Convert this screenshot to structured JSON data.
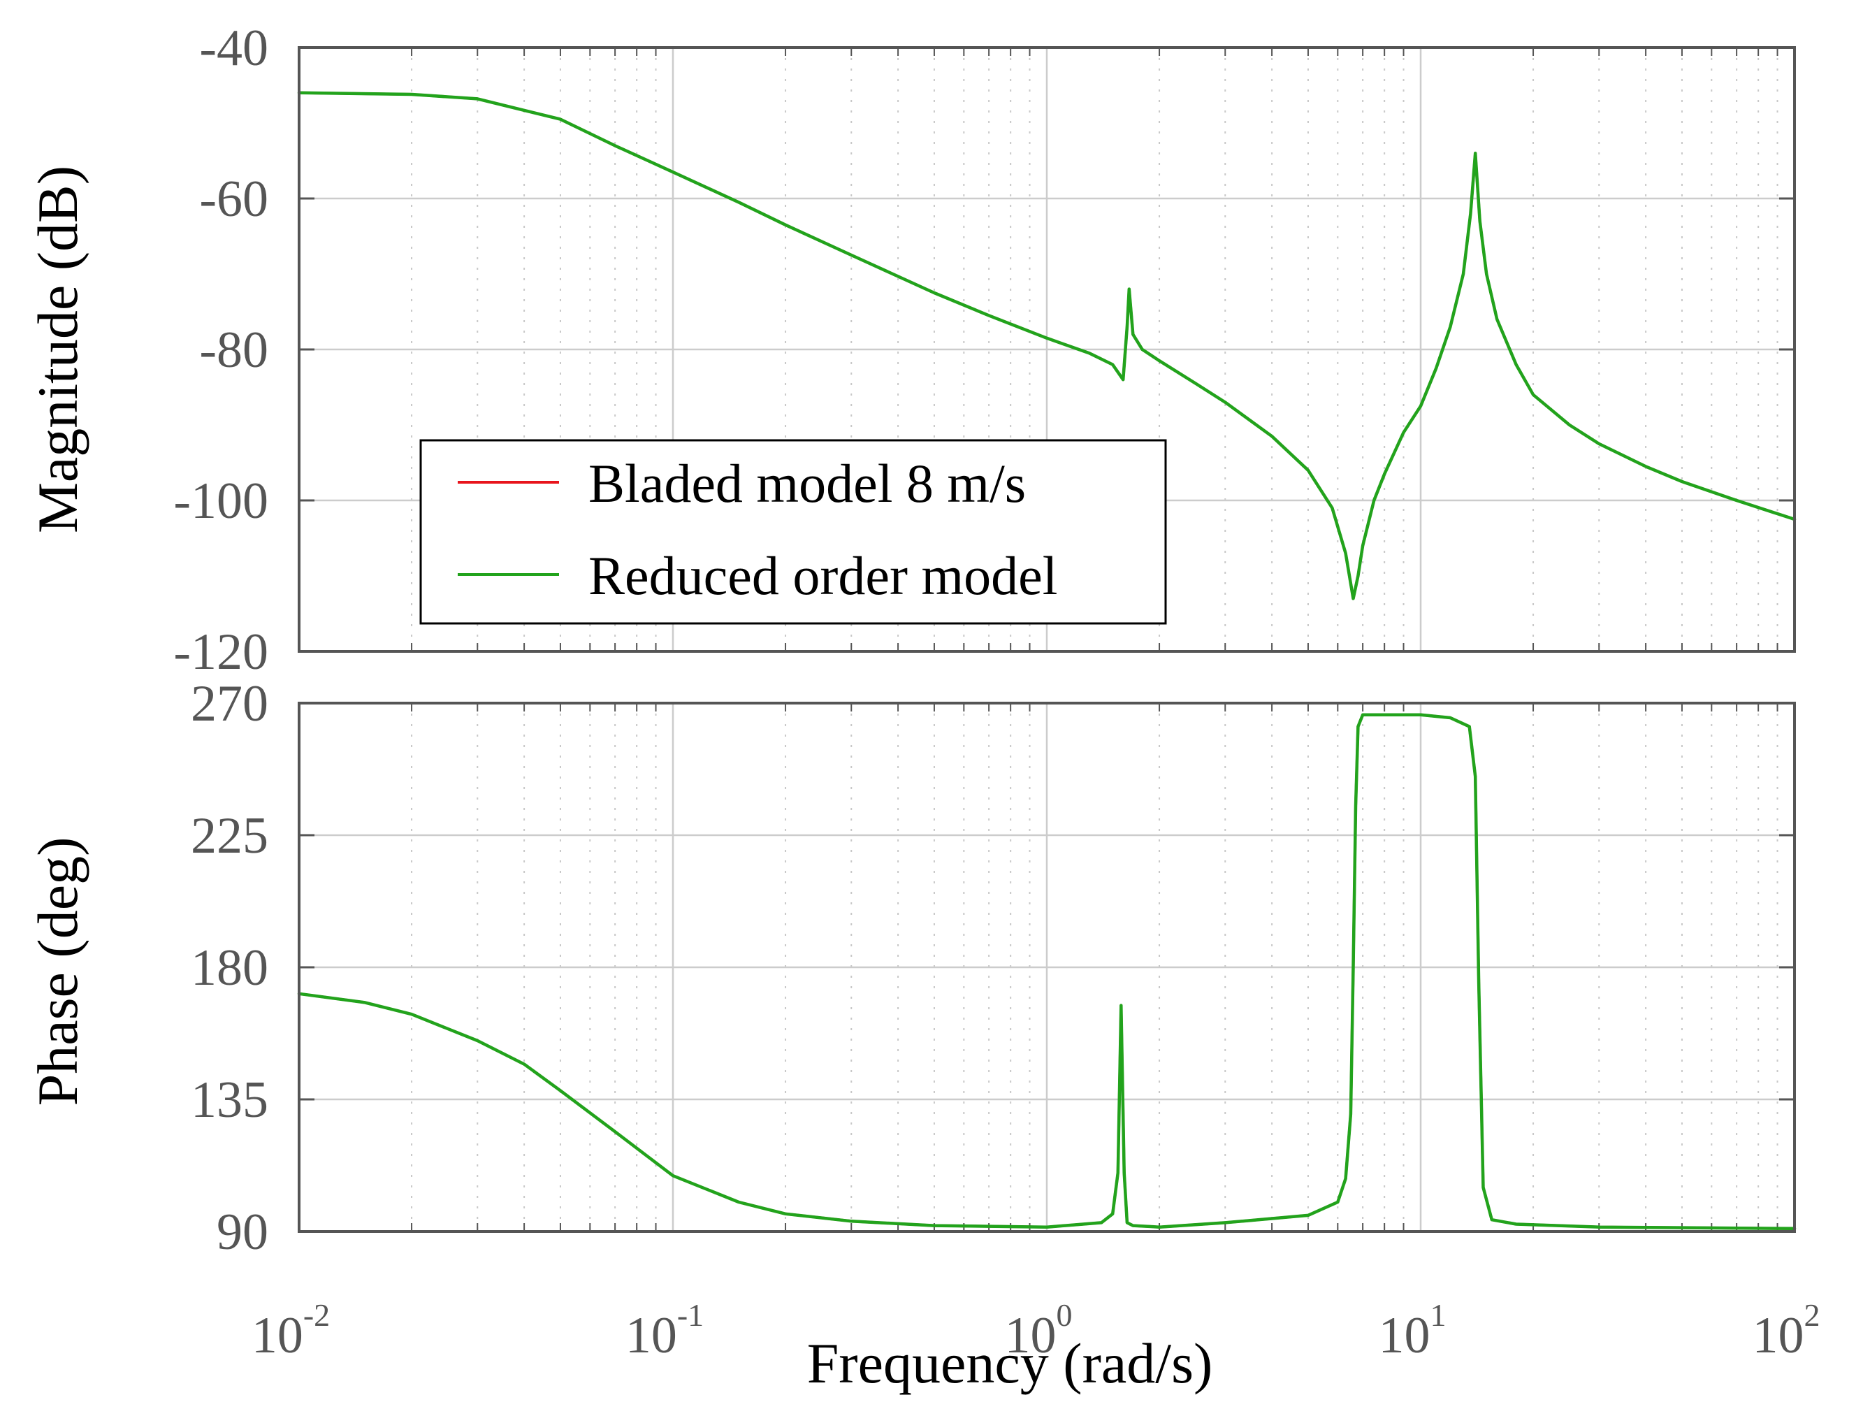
{
  "chart_data": [
    {
      "type": "line",
      "panel": "magnitude",
      "ylabel": "Magnitude (dB)",
      "ylim": [
        -120,
        -40
      ],
      "yticks": [
        -40,
        -60,
        -80,
        -100,
        -120
      ],
      "xscale": "log",
      "xlim": [
        0.01,
        100
      ],
      "grid": true,
      "legend": {
        "position": "lower-left",
        "entries": [
          "Bladed model  8 m/s",
          "Reduced order model"
        ]
      },
      "series": [
        {
          "name": "Bladed model  8 m/s",
          "color": "#e8141c",
          "x": [
            0.01,
            0.02,
            0.03,
            0.05,
            0.07,
            0.1,
            0.15,
            0.2,
            0.3,
            0.5,
            0.7,
            1.0,
            1.3,
            1.5,
            1.6,
            1.64,
            1.66,
            1.7,
            1.8,
            2.0,
            2.5,
            3.0,
            4.0,
            5.0,
            5.8,
            6.3,
            6.6,
            6.8,
            7.0,
            7.5,
            8.0,
            9.0,
            10.0,
            11.0,
            12.0,
            13.0,
            13.6,
            14.0,
            14.4,
            15.0,
            16.0,
            18.0,
            20.0,
            25.0,
            30.0,
            40.0,
            50.0,
            70.0,
            100.0
          ],
          "y": [
            -46,
            -46.2,
            -46.8,
            -49.5,
            -53,
            -56.5,
            -60.5,
            -63.5,
            -67.5,
            -72.5,
            -75.5,
            -78.5,
            -80.5,
            -82,
            -84,
            -77,
            -72,
            -78,
            -80,
            -81.5,
            -84.5,
            -87,
            -91.5,
            -96,
            -101,
            -107,
            -113,
            -110,
            -106,
            -100,
            -96.5,
            -91,
            -87.5,
            -82.5,
            -77,
            -70,
            -62,
            -54,
            -63,
            -70,
            -76,
            -82,
            -86,
            -90,
            -92.5,
            -95.5,
            -97.5,
            -100,
            -102.5
          ]
        },
        {
          "name": "Reduced order model",
          "color": "#22a31c",
          "x": [
            0.01,
            0.02,
            0.03,
            0.05,
            0.07,
            0.1,
            0.15,
            0.2,
            0.3,
            0.5,
            0.7,
            1.0,
            1.3,
            1.5,
            1.6,
            1.64,
            1.66,
            1.7,
            1.8,
            2.0,
            2.5,
            3.0,
            4.0,
            5.0,
            5.8,
            6.3,
            6.6,
            6.8,
            7.0,
            7.5,
            8.0,
            9.0,
            10.0,
            11.0,
            12.0,
            13.0,
            13.6,
            14.0,
            14.4,
            15.0,
            16.0,
            18.0,
            20.0,
            25.0,
            30.0,
            40.0,
            50.0,
            70.0,
            100.0
          ],
          "y": [
            -46,
            -46.2,
            -46.8,
            -49.5,
            -53,
            -56.5,
            -60.5,
            -63.5,
            -67.5,
            -72.5,
            -75.5,
            -78.5,
            -80.5,
            -82,
            -84,
            -77,
            -72,
            -78,
            -80,
            -81.5,
            -84.5,
            -87,
            -91.5,
            -96,
            -101,
            -107,
            -113,
            -110,
            -106,
            -100,
            -96.5,
            -91,
            -87.5,
            -82.5,
            -77,
            -70,
            -62,
            -54,
            -63,
            -70,
            -76,
            -82,
            -86,
            -90,
            -92.5,
            -95.5,
            -97.5,
            -100,
            -102.5
          ]
        }
      ]
    },
    {
      "type": "line",
      "panel": "phase",
      "ylabel": "Phase (deg)",
      "ylim": [
        90,
        270
      ],
      "yticks": [
        270,
        225,
        180,
        135,
        90
      ],
      "xscale": "log",
      "xlim": [
        0.01,
        100
      ],
      "xlabel": "Frequency  (rad/s)",
      "xticks": [
        {
          "base": "10",
          "exp": "-2",
          "value": 0.01
        },
        {
          "base": "10",
          "exp": "-1",
          "value": 0.1
        },
        {
          "base": "10",
          "exp": "0",
          "value": 1
        },
        {
          "base": "10",
          "exp": "1",
          "value": 10
        },
        {
          "base": "10",
          "exp": "2",
          "value": 100
        }
      ],
      "grid": true,
      "series": [
        {
          "name": "Bladed model  8 m/s",
          "color": "#e8141c",
          "x": [
            0.01,
            0.015,
            0.02,
            0.03,
            0.04,
            0.05,
            0.07,
            0.1,
            0.15,
            0.2,
            0.3,
            0.5,
            1.0,
            1.4,
            1.5,
            1.55,
            1.58,
            1.61,
            1.64,
            1.7,
            2.0,
            3.0,
            5.0,
            6.0,
            6.3,
            6.5,
            6.6,
            6.7,
            6.8,
            7.0,
            7.5,
            8.0,
            10.0,
            12.0,
            13.5,
            14.0,
            14.3,
            14.7,
            15.5,
            18.0,
            30.0,
            100.0
          ],
          "y": [
            171,
            168,
            164,
            155,
            147,
            138,
            124,
            109,
            100,
            96,
            93.5,
            92,
            91.5,
            93,
            96,
            110,
            167,
            110,
            93,
            92,
            91.5,
            93,
            95.5,
            100,
            108,
            130,
            180,
            235,
            262,
            266,
            266,
            266,
            266,
            265,
            262,
            245,
            175,
            105,
            94,
            92.5,
            91.5,
            91
          ]
        },
        {
          "name": "Reduced order model",
          "color": "#22a31c",
          "x": [
            0.01,
            0.015,
            0.02,
            0.03,
            0.04,
            0.05,
            0.07,
            0.1,
            0.15,
            0.2,
            0.3,
            0.5,
            1.0,
            1.4,
            1.5,
            1.55,
            1.58,
            1.61,
            1.64,
            1.7,
            2.0,
            3.0,
            5.0,
            6.0,
            6.3,
            6.5,
            6.6,
            6.7,
            6.8,
            7.0,
            7.5,
            8.0,
            10.0,
            12.0,
            13.5,
            14.0,
            14.3,
            14.7,
            15.5,
            18.0,
            30.0,
            100.0
          ],
          "y": [
            171,
            168,
            164,
            155,
            147,
            138,
            124,
            109,
            100,
            96,
            93.5,
            92,
            91.5,
            93,
            96,
            110,
            167,
            110,
            93,
            92,
            91.5,
            93,
            95.5,
            100,
            108,
            130,
            180,
            235,
            262,
            266,
            266,
            266,
            266,
            265,
            262,
            245,
            175,
            105,
            94,
            92.5,
            91.5,
            91
          ]
        }
      ]
    }
  ],
  "colors": {
    "axis": "#555555",
    "grid": "#cccccc",
    "background": "#ffffff"
  }
}
